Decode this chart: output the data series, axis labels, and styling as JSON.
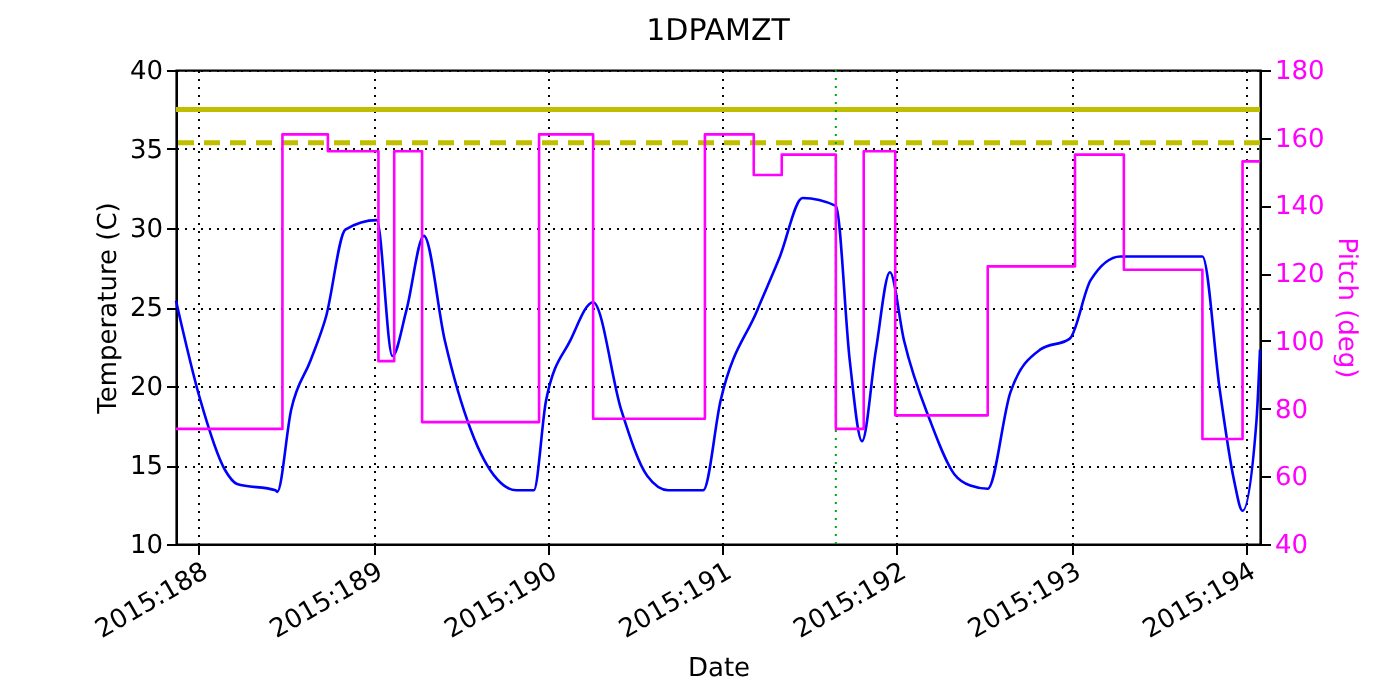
{
  "chart_data": {
    "type": "line",
    "title": "1DPAMZT",
    "xlabel": "Date",
    "ylabel": "Temperature (C)",
    "y2label": "Pitch (deg)",
    "xlim": [
      "2015-07-06T20:53",
      "2015-07-13T01:55"
    ],
    "xticks": [
      {
        "value": "2015-07-07",
        "label": "2015:188"
      },
      {
        "value": "2015-07-08",
        "label": "2015:189"
      },
      {
        "value": "2015-07-09",
        "label": "2015:190"
      },
      {
        "value": "2015-07-10",
        "label": "2015:191"
      },
      {
        "value": "2015-07-11",
        "label": "2015:192"
      },
      {
        "value": "2015-07-12",
        "label": "2015:193"
      },
      {
        "value": "2015-07-13",
        "label": "2015:194"
      }
    ],
    "ylim": [
      10,
      40
    ],
    "yticks": [
      10,
      15,
      20,
      25,
      30,
      35,
      40
    ],
    "y2lim": [
      40,
      180
    ],
    "y2ticks": [
      40,
      60,
      80,
      100,
      120,
      140,
      160,
      180
    ],
    "grid": true,
    "marker": "none",
    "series": [
      {
        "color": "#0000ff",
        "x": [
          "2015-07-06T20:53",
          "2015-07-07T00:14",
          "2015-07-07T03:36",
          "2015-07-07T05:17",
          "2015-07-07T10:34",
          "2015-07-07T10:48",
          "2015-07-07T12:43",
          "2015-07-07T15:22",
          "2015-07-07T17:31",
          "2015-07-07T20:10",
          "2015-07-08T00:29",
          "2015-07-08T02:38",
          "2015-07-08T04:34",
          "2015-07-08T06:58",
          "2015-07-08T09:50",
          "2015-07-08T13:26",
          "2015-07-08T17:02",
          "2015-07-08T19:41",
          "2015-07-08T22:05",
          "2015-07-08T23:46",
          "2015-07-09T03:07",
          "2015-07-09T06:14",
          "2015-07-09T10:05",
          "2015-07-09T13:41",
          "2015-07-09T16:34",
          "2015-07-09T21:22",
          "2015-07-09T23:46",
          "2015-07-10T04:48",
          "2015-07-10T07:55",
          "2015-07-10T11:02",
          "2015-07-10T15:36",
          "2015-07-10T17:31",
          "2015-07-10T19:12",
          "2015-07-10T21:07",
          "2015-07-10T23:02",
          "2015-07-11T00:58",
          "2015-07-11T04:34",
          "2015-07-11T07:55",
          "2015-07-11T10:05",
          "2015-07-11T12:29",
          "2015-07-11T15:36",
          "2015-07-11T19:41",
          "2015-07-11T23:46",
          "2015-07-12T02:38",
          "2015-07-12T06:43",
          "2015-07-12T18:00",
          "2015-07-12T20:24",
          "2015-07-12T22:19",
          "2015-07-12T23:31",
          "2015-07-13T01:26",
          "2015-07-13T01:55"
        ],
        "values": [
          25.4,
          19.1,
          14.7,
          13.8,
          13.4,
          13.3,
          18.5,
          21.6,
          24.4,
          29.9,
          30.5,
          21.9,
          24.8,
          29.5,
          22.9,
          17.2,
          14.1,
          13.4,
          13.4,
          19.1,
          22.9,
          25.3,
          18.5,
          14.3,
          13.4,
          13.4,
          19.1,
          24.8,
          28.2,
          31.9,
          31.4,
          21.6,
          16.5,
          22.3,
          27.2,
          22.9,
          17.8,
          14.4,
          13.7,
          13.5,
          19.6,
          22.3,
          23,
          26.7,
          28.2,
          28.2,
          19.7,
          14.1,
          12.1,
          17.8,
          22.3
        ]
      },
      {
        "type": "step",
        "axis": "y2",
        "color": "#ff00ff",
        "x": [
          "2015-07-06T20:53",
          "2015-07-07T11:31",
          "2015-07-07T17:46",
          "2015-07-08T00:43",
          "2015-07-08T02:53",
          "2015-07-08T06:43",
          "2015-07-08T22:48",
          "2015-07-09T06:14",
          "2015-07-09T21:36",
          "2015-07-10T04:19",
          "2015-07-10T08:10",
          "2015-07-10T15:36",
          "2015-07-10T19:26",
          "2015-07-10T23:46",
          "2015-07-11T12:29",
          "2015-07-12T00:29",
          "2015-07-12T07:12",
          "2015-07-12T18:00",
          "2015-07-12T23:31",
          "2015-07-13T01:55"
        ],
        "values": [
          74,
          161,
          156,
          94,
          156,
          76,
          161,
          77,
          161,
          149,
          155,
          74,
          156,
          78,
          122,
          155,
          121,
          71,
          153,
          153
        ]
      }
    ],
    "ref_lines": [
      {
        "axis": "y",
        "value": 37.5,
        "color": "#bfbf00",
        "line_style": "solid"
      },
      {
        "axis": "y",
        "value": 35.4,
        "color": "#bfbf00",
        "line_style": "dashed"
      },
      {
        "axis": "x",
        "value": "2015-07-10T15:36",
        "color": "#00aa00",
        "line_style": "dotted"
      }
    ]
  }
}
